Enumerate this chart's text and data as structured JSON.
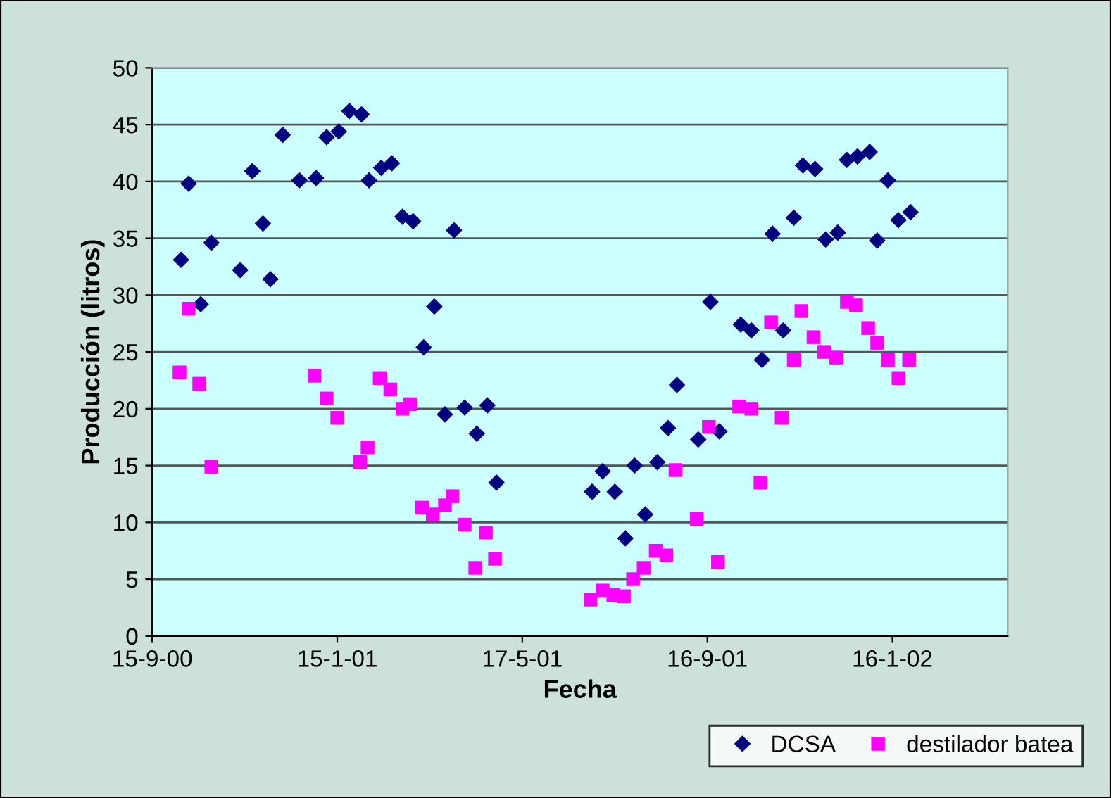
{
  "chart_data": {
    "type": "scatter",
    "xlabel": "Fecha",
    "ylabel": "Producción (litros)",
    "xlim": [
      "2000-09-15",
      "2002-04-02"
    ],
    "xticks": [
      {
        "value": "2000-09-15",
        "label": "15-9-00"
      },
      {
        "value": "2001-01-15",
        "label": "15-1-01"
      },
      {
        "value": "2001-05-17",
        "label": "17-5-01"
      },
      {
        "value": "2001-09-16",
        "label": "16-9-01"
      },
      {
        "value": "2002-01-16",
        "label": "16-1-02"
      }
    ],
    "ylim": [
      0,
      50
    ],
    "yticks": [
      0,
      5,
      10,
      15,
      20,
      25,
      30,
      35,
      40,
      45,
      50
    ],
    "grid": "y",
    "legend": "bottom right",
    "series": [
      {
        "name": "DCSA",
        "color": "#000080",
        "marker": "diamond",
        "x": [
          "2000-10-04",
          "2000-10-09",
          "2000-10-17",
          "2000-10-24",
          "2000-11-12",
          "2000-11-20",
          "2000-11-27",
          "2000-12-02",
          "2000-12-10",
          "2000-12-21",
          "2001-01-01",
          "2001-01-08",
          "2001-01-16",
          "2001-01-23",
          "2001-01-31",
          "2001-02-05",
          "2001-02-13",
          "2001-02-20",
          "2001-02-27",
          "2001-03-06",
          "2001-03-13",
          "2001-03-20",
          "2001-03-27",
          "2001-04-02",
          "2001-04-09",
          "2001-04-17",
          "2001-04-24",
          "2001-04-30",
          "2001-07-02",
          "2001-07-09",
          "2001-07-17",
          "2001-07-24",
          "2001-07-30",
          "2001-08-06",
          "2001-08-14",
          "2001-08-21",
          "2001-08-27",
          "2001-09-10",
          "2001-09-18",
          "2001-09-24",
          "2001-10-08",
          "2001-10-15",
          "2001-10-22",
          "2001-10-29",
          "2001-11-05",
          "2001-11-12",
          "2001-11-18",
          "2001-11-26",
          "2001-12-03",
          "2001-12-11",
          "2001-12-17",
          "2001-12-24",
          "2002-01-01",
          "2002-01-06",
          "2002-01-13",
          "2002-01-20",
          "2002-01-28"
        ],
        "values": [
          33.1,
          39.8,
          29.2,
          34.6,
          32.2,
          40.9,
          36.3,
          31.4,
          44.1,
          40.1,
          40.3,
          43.9,
          44.4,
          46.2,
          45.9,
          40.1,
          41.2,
          41.6,
          36.9,
          36.5,
          25.4,
          29.0,
          19.5,
          35.7,
          20.1,
          17.8,
          20.3,
          13.5,
          12.7,
          14.5,
          12.7,
          8.6,
          15.0,
          10.7,
          15.3,
          18.3,
          22.1,
          17.3,
          29.4,
          18.0,
          27.4,
          26.9,
          24.3,
          35.4,
          26.9,
          36.8,
          41.4,
          41.1,
          34.9,
          35.5,
          41.9,
          42.2,
          42.6,
          34.8,
          40.1,
          36.6,
          37.3
        ]
      },
      {
        "name": "destilador batea",
        "color": "#ff00ff",
        "marker": "square",
        "x": [
          "2000-10-03",
          "2000-10-09",
          "2000-10-16",
          "2000-10-24",
          "2000-12-31",
          "2001-01-08",
          "2001-01-15",
          "2001-01-30",
          "2001-02-04",
          "2001-02-12",
          "2001-02-19",
          "2001-02-27",
          "2001-03-04",
          "2001-03-12",
          "2001-03-19",
          "2001-03-27",
          "2001-04-01",
          "2001-04-09",
          "2001-04-16",
          "2001-04-23",
          "2001-04-29",
          "2001-07-01",
          "2001-07-09",
          "2001-07-16",
          "2001-07-23",
          "2001-07-29",
          "2001-08-05",
          "2001-08-13",
          "2001-08-20",
          "2001-08-26",
          "2001-09-09",
          "2001-09-17",
          "2001-09-23",
          "2001-10-07",
          "2001-10-15",
          "2001-10-21",
          "2001-10-28",
          "2001-11-04",
          "2001-11-12",
          "2001-11-17",
          "2001-11-25",
          "2001-12-02",
          "2001-12-10",
          "2001-12-17",
          "2001-12-23",
          "2001-12-31",
          "2002-01-06",
          "2002-01-13",
          "2002-01-20",
          "2002-01-27"
        ],
        "values": [
          23.2,
          28.8,
          22.2,
          14.9,
          22.9,
          20.9,
          19.2,
          15.3,
          16.6,
          22.7,
          21.7,
          20.0,
          20.4,
          11.3,
          10.7,
          11.5,
          12.3,
          9.8,
          6.0,
          9.1,
          6.8,
          3.2,
          4.0,
          3.6,
          3.5,
          5.0,
          6.0,
          7.5,
          7.1,
          14.6,
          10.3,
          18.4,
          6.5,
          20.2,
          20.0,
          13.5,
          27.6,
          19.2,
          24.3,
          28.6,
          26.3,
          25.0,
          24.5,
          29.4,
          29.1,
          27.1,
          25.8,
          24.3,
          22.7,
          24.3
        ]
      }
    ]
  }
}
